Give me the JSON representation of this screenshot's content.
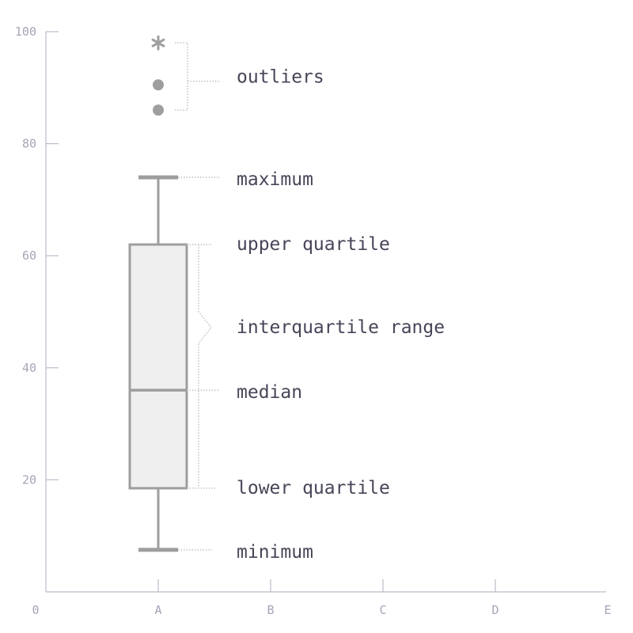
{
  "chart_data": {
    "type": "box",
    "xlabel": "",
    "ylabel": "",
    "categories": [
      "A",
      "B",
      "C",
      "D",
      "E"
    ],
    "x_origin_label": "0",
    "ylim": [
      0,
      100
    ],
    "y_ticks": [
      20,
      40,
      60,
      80,
      100
    ],
    "grid": false,
    "boxes": [
      {
        "category": "A",
        "minimum": 7.5,
        "lower_quartile": 18.5,
        "median": 36,
        "upper_quartile": 62,
        "maximum": 74,
        "outliers": [
          {
            "value": 98,
            "marker": "asterisk"
          },
          {
            "value": 90.5,
            "marker": "dot"
          },
          {
            "value": 86,
            "marker": "dot"
          }
        ]
      }
    ],
    "annotations": {
      "outliers": "outliers",
      "maximum": "maximum",
      "upper_quartile": "upper quartile",
      "interquartile_range": "interquartile range",
      "median": "median",
      "lower_quartile": "lower quartile",
      "minimum": "minimum"
    },
    "colors": {
      "box_fill": "#efefef",
      "box_stroke": "#9e9e9e",
      "axis": "#bdbac8",
      "tick_text": "#a8a4b8",
      "annotation_text": "#4a4458"
    }
  }
}
